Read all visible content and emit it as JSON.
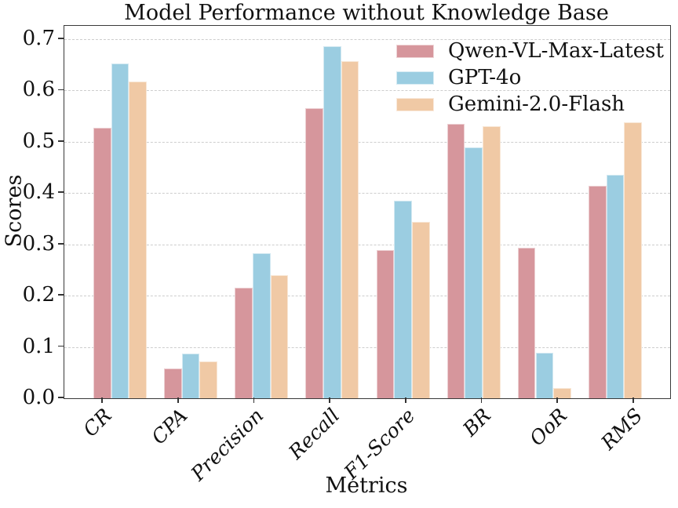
{
  "chart_data": {
    "type": "bar",
    "title": "Model Performance without Knowledge Base",
    "xlabel": "Metrics",
    "ylabel": "Scores",
    "categories": [
      "CR",
      "CPA",
      "Precision",
      "Recall",
      "F1-Score",
      "BR",
      "OoR",
      "RMS"
    ],
    "series": [
      {
        "name": "Qwen-VL-Max-Latest",
        "color": "#d6969c",
        "values": [
          0.528,
          0.058,
          0.216,
          0.566,
          0.289,
          0.535,
          0.294,
          0.414
        ]
      },
      {
        "name": "GPT-4o",
        "color": "#9bcde1",
        "values": [
          0.652,
          0.087,
          0.283,
          0.687,
          0.385,
          0.489,
          0.089,
          0.435
        ]
      },
      {
        "name": "Gemini-2.0-Flash",
        "color": "#f0c9a5",
        "values": [
          0.617,
          0.072,
          0.24,
          0.658,
          0.344,
          0.53,
          0.02,
          0.538
        ]
      }
    ],
    "ylim": [
      0,
      0.726
    ],
    "yticks": [
      0.0,
      0.1,
      0.2,
      0.3,
      0.4,
      0.5,
      0.6,
      0.7
    ],
    "grid": "horizontal-dashed",
    "legend_position": "upper-right",
    "legend_frame": false
  }
}
